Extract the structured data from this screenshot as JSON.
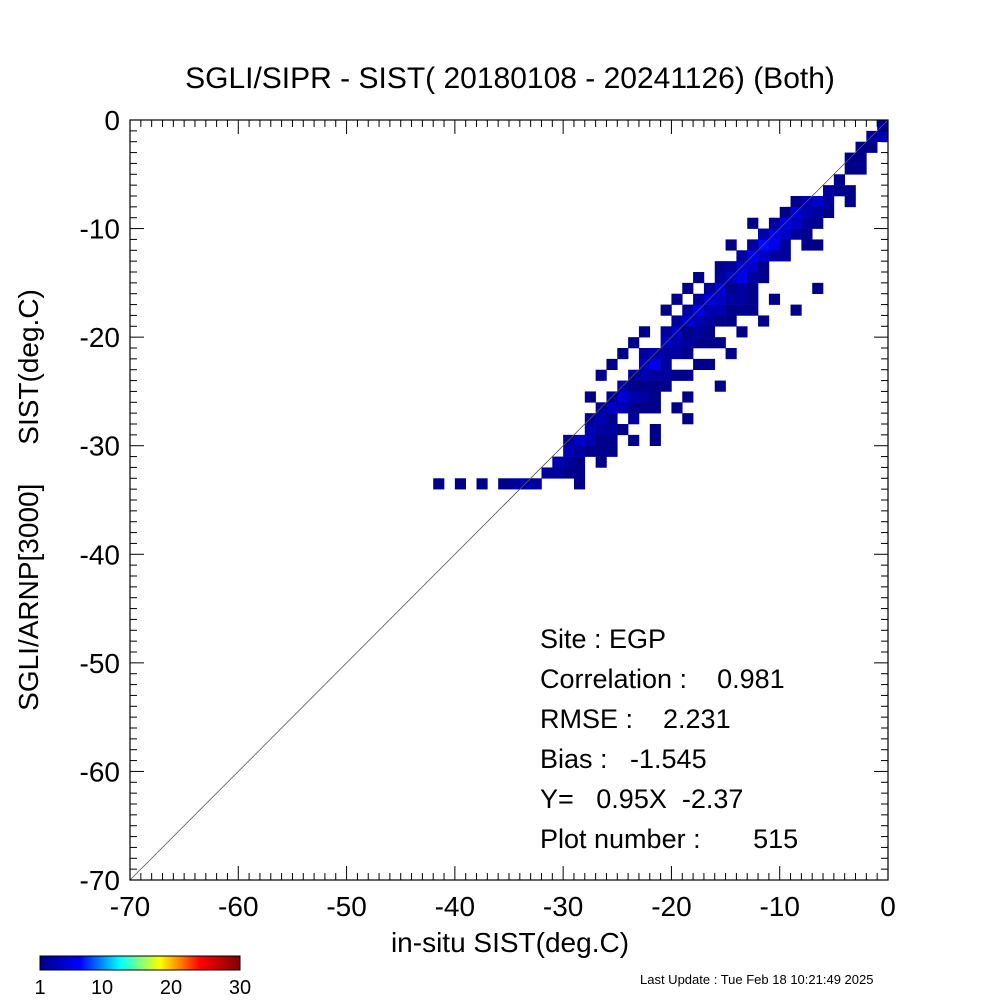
{
  "chart_data": {
    "type": "heatmap",
    "title": "SGLI/SIPR - SIST( 20180108 - 20241126) (Both)",
    "xlabel": "in-situ SIST(deg.C)",
    "ylabel": "SGLI/ARNP[3000]     SIST(deg.C)",
    "xlim": [
      -70,
      0
    ],
    "ylim": [
      -70,
      0
    ],
    "xticks": [
      "-70",
      "-60",
      "-50",
      "-40",
      "-30",
      "-20",
      "-10",
      "0"
    ],
    "yticks": [
      "-70",
      "-60",
      "-50",
      "-40",
      "-30",
      "-20",
      "-10",
      "0"
    ],
    "reference_line": "y = x",
    "bin_size": 1,
    "colorbar": {
      "ticks": [
        "1",
        "10",
        "20",
        "30"
      ],
      "min": 1,
      "max": 30,
      "colors": [
        "#00008b",
        "#0000ff",
        "#00ffff",
        "#ffff00",
        "#ff0000",
        "#800000"
      ]
    },
    "cells": [
      [
        -41.5,
        -33.5,
        1
      ],
      [
        -39.5,
        -33.5,
        1
      ],
      [
        -37.5,
        -33.5,
        1
      ],
      [
        -35.5,
        -33.5,
        1
      ],
      [
        -34.5,
        -33.5,
        2
      ],
      [
        -33.5,
        -33.5,
        3
      ],
      [
        -32.5,
        -33.5,
        2
      ],
      [
        -31.5,
        -32.5,
        2
      ],
      [
        -30.5,
        -32.5,
        2
      ],
      [
        -30.5,
        -31.5,
        3
      ],
      [
        -29.5,
        -31.5,
        2
      ],
      [
        -28.5,
        -31.5,
        1
      ],
      [
        -28.5,
        -33.5,
        1
      ],
      [
        -28.5,
        -32.5,
        1
      ],
      [
        -29.5,
        -30.5,
        3
      ],
      [
        -28.5,
        -30.5,
        2
      ],
      [
        -28.5,
        -29.5,
        4
      ],
      [
        -27.5,
        -29.5,
        3
      ],
      [
        -29.5,
        -29.5,
        2
      ],
      [
        -27.5,
        -28.5,
        3
      ],
      [
        -26.5,
        -28.5,
        2
      ],
      [
        -26.5,
        -27.5,
        3
      ],
      [
        -27.5,
        -27.5,
        2
      ],
      [
        -25.5,
        -27.5,
        1
      ],
      [
        -25.5,
        -26.5,
        4
      ],
      [
        -24.5,
        -26.5,
        3
      ],
      [
        -26.5,
        -26.5,
        2
      ],
      [
        -23.5,
        -26.5,
        1
      ],
      [
        -24.5,
        -25.5,
        5
      ],
      [
        -23.5,
        -25.5,
        3
      ],
      [
        -25.5,
        -25.5,
        2
      ],
      [
        -24.5,
        -24.5,
        3
      ],
      [
        -23.5,
        -24.5,
        4
      ],
      [
        -22.5,
        -24.5,
        2
      ],
      [
        -21.5,
        -24.5,
        1
      ],
      [
        -23.5,
        -23.5,
        2
      ],
      [
        -22.5,
        -23.5,
        3
      ],
      [
        -22.5,
        -22.5,
        4
      ],
      [
        -21.5,
        -22.5,
        6
      ],
      [
        -20.5,
        -22.5,
        2
      ],
      [
        -21.5,
        -21.5,
        3
      ],
      [
        -20.5,
        -21.5,
        5
      ],
      [
        -22.5,
        -21.5,
        2
      ],
      [
        -20.5,
        -20.5,
        4
      ],
      [
        -19.5,
        -20.5,
        3
      ],
      [
        -19.5,
        -19.5,
        4
      ],
      [
        -18.5,
        -19.5,
        2
      ],
      [
        -20.5,
        -19.5,
        2
      ],
      [
        -18.5,
        -18.5,
        5
      ],
      [
        -17.5,
        -18.5,
        3
      ],
      [
        -19.5,
        -18.5,
        2
      ],
      [
        -17.5,
        -17.5,
        6
      ],
      [
        -16.5,
        -17.5,
        3
      ],
      [
        -18.5,
        -17.5,
        2
      ],
      [
        -16.5,
        -16.5,
        5
      ],
      [
        -15.5,
        -16.5,
        4
      ],
      [
        -17.5,
        -16.5,
        2
      ],
      [
        -15.5,
        -15.5,
        5
      ],
      [
        -14.5,
        -15.5,
        3
      ],
      [
        -16.5,
        -15.5,
        2
      ],
      [
        -14.5,
        -14.5,
        4
      ],
      [
        -13.5,
        -14.5,
        6
      ],
      [
        -15.5,
        -14.5,
        2
      ],
      [
        -13.5,
        -13.5,
        5
      ],
      [
        -12.5,
        -13.5,
        4
      ],
      [
        -14.5,
        -13.5,
        2
      ],
      [
        -12.5,
        -12.5,
        6
      ],
      [
        -11.5,
        -12.5,
        4
      ],
      [
        -13.5,
        -12.5,
        2
      ],
      [
        -11.5,
        -11.5,
        7
      ],
      [
        -10.5,
        -11.5,
        5
      ],
      [
        -12.5,
        -11.5,
        3
      ],
      [
        -10.5,
        -10.5,
        6
      ],
      [
        -9.5,
        -10.5,
        4
      ],
      [
        -11.5,
        -10.5,
        2
      ],
      [
        -9.5,
        -9.5,
        5
      ],
      [
        -8.5,
        -9.5,
        4
      ],
      [
        -10.5,
        -9.5,
        2
      ],
      [
        -8.5,
        -8.5,
        5
      ],
      [
        -7.5,
        -8.5,
        3
      ],
      [
        -6.5,
        -8.5,
        2
      ],
      [
        -7.5,
        -7.5,
        3
      ],
      [
        -6.5,
        -7.5,
        4
      ],
      [
        -5.5,
        -7.5,
        2
      ],
      [
        -5.5,
        -6.5,
        2
      ],
      [
        -4.5,
        -5.5,
        1
      ],
      [
        -3.5,
        -4.5,
        1
      ],
      [
        -1.5,
        -1.5,
        2
      ],
      [
        -0.5,
        -1.5,
        3
      ],
      [
        -0.5,
        -0.5,
        2
      ],
      [
        -1.5,
        -2.5,
        1
      ],
      [
        -2.5,
        -2.5,
        1
      ],
      [
        -3.5,
        -3.5,
        1
      ],
      [
        -2.5,
        -3.5,
        1
      ],
      [
        -12.5,
        -9.5,
        1
      ],
      [
        -9.5,
        -8.5,
        1
      ],
      [
        -8.5,
        -7.5,
        1
      ],
      [
        -14.5,
        -11.5,
        1
      ],
      [
        -15.5,
        -13.5,
        1
      ],
      [
        -17.5,
        -14.5,
        1
      ],
      [
        -18.5,
        -15.5,
        1
      ],
      [
        -19.5,
        -16.5,
        1
      ],
      [
        -20.5,
        -17.5,
        1
      ],
      [
        -22.5,
        -19.5,
        1
      ],
      [
        -23.5,
        -20.5,
        1
      ],
      [
        -24.5,
        -21.5,
        1
      ],
      [
        -25.5,
        -22.5,
        1
      ],
      [
        -26.5,
        -23.5,
        1
      ],
      [
        -27.5,
        -25.5,
        1
      ],
      [
        -11.5,
        -10.5,
        3
      ],
      [
        -10.5,
        -11.5,
        6
      ],
      [
        -9.5,
        -11.5,
        2
      ],
      [
        -9.5,
        -12.5,
        2
      ],
      [
        -10.5,
        -12.5,
        2
      ],
      [
        -12.5,
        -14.5,
        2
      ],
      [
        -11.5,
        -14.5,
        1
      ],
      [
        -13.5,
        -15.5,
        2
      ],
      [
        -12.5,
        -15.5,
        1
      ],
      [
        -14.5,
        -16.5,
        2
      ],
      [
        -13.5,
        -16.5,
        2
      ],
      [
        -12.5,
        -16.5,
        1
      ],
      [
        -15.5,
        -17.5,
        3
      ],
      [
        -14.5,
        -17.5,
        1
      ],
      [
        -16.5,
        -18.5,
        2
      ],
      [
        -15.5,
        -18.5,
        1
      ],
      [
        -17.5,
        -19.5,
        2
      ],
      [
        -16.5,
        -19.5,
        1
      ],
      [
        -18.5,
        -20.5,
        2
      ],
      [
        -17.5,
        -20.5,
        1
      ],
      [
        -19.5,
        -21.5,
        2
      ],
      [
        -18.5,
        -21.5,
        1
      ],
      [
        -20.5,
        -23.5,
        2
      ],
      [
        -19.5,
        -23.5,
        1
      ],
      [
        -21.5,
        -23.5,
        2
      ],
      [
        -22.5,
        -25.5,
        2
      ],
      [
        -21.5,
        -25.5,
        1
      ],
      [
        -23.5,
        -27.5,
        2
      ],
      [
        -22.5,
        -26.5,
        1
      ],
      [
        -24.5,
        -28.5,
        1
      ],
      [
        -25.5,
        -28.5,
        2
      ],
      [
        -26.5,
        -29.5,
        1
      ],
      [
        -27.5,
        -30.5,
        1
      ],
      [
        -26.5,
        -30.5,
        1
      ],
      [
        -29.5,
        -32.5,
        1
      ],
      [
        -8.5,
        -10.5,
        2
      ],
      [
        -7.5,
        -9.5,
        2
      ],
      [
        -7.5,
        -10.5,
        1
      ],
      [
        -6.5,
        -9.5,
        1
      ],
      [
        -5.5,
        -8.5,
        1
      ],
      [
        -14.5,
        -18.5,
        1
      ],
      [
        -16.5,
        -20.5,
        1
      ],
      [
        -13.5,
        -17.5,
        1
      ],
      [
        -11.5,
        -13.5,
        1
      ],
      [
        -7.5,
        -11.5,
        1
      ],
      [
        -12.5,
        -17.5,
        1
      ],
      [
        -10.5,
        -16.5,
        1
      ],
      [
        -6.5,
        -15.5,
        1
      ],
      [
        -8.5,
        -17.5,
        1
      ],
      [
        -6.5,
        -11.5,
        1
      ],
      [
        -15.5,
        -20.5,
        1
      ],
      [
        -17.5,
        -22.5,
        1
      ],
      [
        -14.5,
        -21.5,
        1
      ],
      [
        -11.5,
        -18.5,
        1
      ],
      [
        -13.5,
        -19.5,
        1
      ],
      [
        -16.5,
        -22.5,
        1
      ],
      [
        -18.5,
        -23.5,
        1
      ],
      [
        -15.5,
        -24.5,
        1
      ],
      [
        -18.5,
        -25.5,
        1
      ],
      [
        -21.5,
        -26.5,
        1
      ],
      [
        -21.5,
        -28.5,
        1
      ],
      [
        -18.5,
        -27.5,
        1
      ],
      [
        -21.5,
        -29.5,
        1
      ],
      [
        -25.5,
        -29.5,
        1
      ],
      [
        -23.5,
        -29.5,
        1
      ],
      [
        -26.5,
        -31.5,
        1
      ],
      [
        -25.5,
        -30.5,
        1
      ],
      [
        -19.5,
        -26.5,
        1
      ],
      [
        -20.5,
        -24.5,
        1
      ],
      [
        -22.5,
        -24.5,
        1
      ],
      [
        -3.5,
        -6.5,
        1
      ],
      [
        -3.5,
        -7.5,
        1
      ],
      [
        -4.5,
        -6.5,
        1
      ],
      [
        -2.5,
        -4.5,
        1
      ],
      [
        -12.5,
        -11.5,
        2
      ],
      [
        -14.5,
        -15.5,
        1
      ],
      [
        -18.5,
        -19.5,
        1
      ],
      [
        -23.5,
        -24.5,
        1
      ],
      [
        -28.5,
        -30.5,
        2
      ],
      [
        -20.5,
        -21.5,
        2
      ]
    ]
  },
  "stats": {
    "site": "Site : EGP",
    "correlation": "Correlation :    0.981",
    "rmse": "RMSE :    2.231",
    "bias": "Bias :   -1.545",
    "fit": "Y=   0.95X  -2.37",
    "plot_number": "Plot number :       515"
  },
  "footer": {
    "last_update": "Last Update : Tue Feb 18 10:21:49 2025"
  }
}
